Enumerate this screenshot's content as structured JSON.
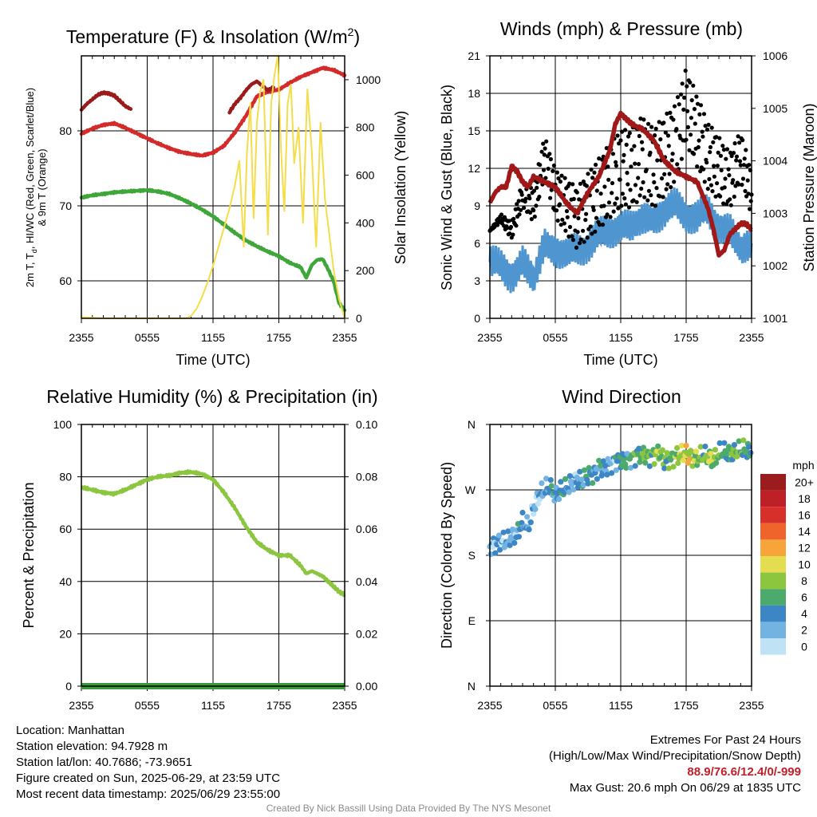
{
  "panels": {
    "temperature": {
      "title": "Temperature (F) & Insolation (W/m",
      "title_sup": "2",
      "title_end": ")",
      "ylabel_left_line1": "2m T, T",
      "ylabel_left_sub": "d",
      "ylabel_left_line1_end": ", HI/WC (Red, Green, Scarlet/Blue)",
      "ylabel_left_line2": "& 9m T (Orange)",
      "ylabel_right": "Solar Insolation (Yellow)",
      "xlabel": "Time (UTC)"
    },
    "winds": {
      "title": "Winds (mph) & Pressure (mb)",
      "ylabel_left": "Sonic Wind & Gust (Blue, Black)",
      "ylabel_right": "Station Pressure (Maroon)",
      "xlabel": "Time (UTC)"
    },
    "humidity": {
      "title": "Relative Humidity (%) & Precipitation (in)",
      "ylabel_left": "Percent & Precipitation"
    },
    "direction": {
      "title": "Wind Direction",
      "ylabel_left": "Direction (Colored By Speed)",
      "legend_title": "mph"
    }
  },
  "chart_data": [
    {
      "type": "line",
      "title": "Temperature (F) & Insolation (W/m2)",
      "xlabel": "Time (UTC)",
      "x_tick_labels": [
        "2355",
        "0555",
        "1155",
        "1755",
        "2355"
      ],
      "xlim": [
        0,
        24
      ],
      "ylim_left": [
        55,
        90
      ],
      "y_ticks_left": [
        60,
        70,
        80
      ],
      "ylim_right": [
        0,
        1100
      ],
      "y_ticks_right": [
        0,
        200,
        400,
        600,
        800,
        1000
      ],
      "series": [
        {
          "name": "2m T",
          "color": "#d42a2a",
          "axis": "left",
          "x": [
            0,
            1,
            2,
            3,
            4,
            5,
            6,
            7,
            8,
            9,
            10,
            11,
            12,
            13,
            14,
            15,
            16,
            17,
            18,
            19,
            20,
            21,
            22,
            23,
            24
          ],
          "y": [
            79.6,
            80.3,
            80.8,
            81.0,
            80.4,
            79.7,
            79.0,
            78.3,
            77.7,
            77.2,
            76.9,
            76.7,
            77.1,
            78.0,
            79.8,
            82.0,
            84.6,
            85.2,
            85.5,
            86.4,
            87.2,
            87.8,
            88.4,
            88.1,
            87.4
          ]
        },
        {
          "name": "HI/WC",
          "color": "#9a1b1b",
          "axis": "left",
          "x": [
            0,
            0.5,
            1,
            1.5,
            2,
            2.5,
            3,
            3.5,
            4,
            4.5
          ],
          "y": [
            82.8,
            83.6,
            84.2,
            84.8,
            85.1,
            85.0,
            84.7,
            84.0,
            83.3,
            82.9
          ]
        },
        {
          "name": "HI/WC",
          "color": "#9a1b1b",
          "axis": "left",
          "x": [
            13.5,
            14,
            14.5,
            15,
            15.5,
            16,
            16.5,
            17,
            17.5
          ],
          "y": [
            82.5,
            83.6,
            84.4,
            85.4,
            86.2,
            86.6,
            86.0,
            85.4,
            85.8
          ]
        },
        {
          "name": "Td",
          "color": "#3fa63a",
          "axis": "left",
          "x": [
            0,
            1,
            2,
            3,
            4,
            5,
            6,
            7,
            8,
            9,
            10,
            11,
            12,
            13,
            14,
            15,
            16,
            17,
            18,
            19,
            20,
            20.5,
            21,
            21.5,
            22,
            22.5,
            23,
            23.5,
            24
          ],
          "y": [
            71.1,
            71.4,
            71.6,
            71.8,
            71.9,
            72.0,
            72.1,
            71.9,
            71.6,
            71.0,
            70.3,
            69.5,
            68.6,
            67.5,
            66.4,
            65.4,
            64.6,
            63.9,
            63.3,
            62.4,
            61.8,
            60.4,
            62.1,
            62.8,
            62.9,
            61.5,
            59.9,
            57.0,
            56.1
          ]
        },
        {
          "name": "Solar Insolation",
          "color": "#f5dd4a",
          "axis": "right",
          "x": [
            0,
            2,
            4,
            6,
            8,
            9,
            9.5,
            10,
            10.5,
            11,
            11.5,
            12,
            12.5,
            13,
            13.5,
            14,
            14.4,
            14.8,
            15.1,
            15.4,
            15.7,
            16,
            16.3,
            16.6,
            17,
            17.3,
            17.6,
            17.9,
            18.2,
            18.5,
            18.8,
            19.1,
            19.4,
            19.8,
            20.2,
            20.6,
            21,
            21.4,
            21.8,
            22.2,
            22.6,
            23,
            23.5,
            24
          ],
          "y": [
            5,
            0,
            0,
            0,
            0,
            0,
            0,
            10,
            40,
            90,
            150,
            220,
            300,
            380,
            460,
            560,
            660,
            300,
            700,
            900,
            420,
            820,
            950,
            1000,
            350,
            900,
            1020,
            1100,
            700,
            450,
            900,
            980,
            650,
            800,
            400,
            960,
            700,
            300,
            820,
            500,
            350,
            200,
            80,
            0
          ]
        }
      ]
    },
    {
      "type": "line",
      "title": "Winds (mph) & Pressure (mb)",
      "xlabel": "Time (UTC)",
      "x_tick_labels": [
        "2355",
        "0555",
        "1155",
        "1755",
        "2355"
      ],
      "xlim": [
        0,
        24
      ],
      "ylim_left": [
        0,
        21
      ],
      "y_ticks_left": [
        0,
        3,
        6,
        9,
        12,
        15,
        18,
        21
      ],
      "ylim_right": [
        1001,
        1006
      ],
      "y_ticks_right": [
        1001,
        1002,
        1003,
        1004,
        1005,
        1006
      ],
      "series": [
        {
          "name": "Sonic Wind",
          "color": "#4f95d0",
          "axis": "left",
          "x": [
            0,
            1,
            2,
            3,
            4,
            5,
            6,
            7,
            8,
            9,
            10,
            11,
            12,
            13,
            14,
            15,
            16,
            17,
            18,
            19,
            20,
            21,
            22,
            23,
            24
          ],
          "y": [
            4.5,
            4.0,
            3.5,
            4.5,
            3.0,
            6.0,
            5.5,
            5.0,
            5.5,
            6.0,
            6.5,
            7.0,
            7.5,
            7.2,
            8.0,
            8.0,
            8.5,
            9.0,
            8.5,
            8.0,
            8.5,
            7.5,
            7.0,
            5.5,
            6.0
          ]
        },
        {
          "name": "Gust",
          "color": "#000000",
          "axis": "left",
          "style": "dots",
          "x": [
            0,
            1,
            2,
            3,
            4,
            5,
            6,
            7,
            8,
            9,
            10,
            11,
            12,
            13,
            14,
            15,
            16,
            17,
            18,
            19,
            20,
            21,
            22,
            23,
            24
          ],
          "y": [
            7,
            8,
            7,
            10,
            9,
            13,
            10,
            9,
            8,
            9,
            10,
            11,
            12,
            12,
            13,
            12,
            13,
            14,
            17,
            15,
            13,
            12,
            11,
            13,
            10
          ]
        },
        {
          "name": "Station Pressure",
          "color": "#a01818",
          "axis": "right",
          "x": [
            0,
            0.5,
            1,
            1.5,
            2,
            2.5,
            3,
            3.5,
            4,
            5,
            6,
            7,
            8,
            9,
            10,
            11,
            11.5,
            12,
            12.5,
            13,
            14,
            15,
            16,
            17,
            18,
            19,
            20,
            20.5,
            21,
            21.5,
            22,
            22.5,
            23,
            23.5,
            24
          ],
          "y": [
            1003.2,
            1003.4,
            1003.5,
            1003.5,
            1003.9,
            1003.8,
            1003.6,
            1003.5,
            1003.7,
            1003.6,
            1003.5,
            1003.2,
            1003.0,
            1003.4,
            1003.7,
            1004.2,
            1004.7,
            1004.9,
            1004.8,
            1004.7,
            1004.6,
            1004.4,
            1004.0,
            1003.8,
            1003.7,
            1003.6,
            1003.1,
            1002.7,
            1002.2,
            1002.3,
            1002.6,
            1002.7,
            1002.8,
            1002.8,
            1002.7
          ]
        }
      ]
    },
    {
      "type": "line",
      "title": "Relative Humidity (%) & Precipitation (in)",
      "ylabel": "Percent & Precipitation",
      "x_tick_labels": [
        "2355",
        "0555",
        "1155",
        "1755",
        "2355"
      ],
      "xlim": [
        0,
        24
      ],
      "ylim_left": [
        0,
        100
      ],
      "y_ticks_left": [
        0,
        20,
        40,
        60,
        80,
        100
      ],
      "ylim_right": [
        0,
        0.1
      ],
      "y_tick_labels_right": [
        "0.00",
        "0.02",
        "0.04",
        "0.06",
        "0.08",
        "0.10"
      ],
      "series": [
        {
          "name": "Relative Humidity",
          "color": "#8cc640",
          "axis": "left",
          "x": [
            0,
            1,
            2,
            3,
            4,
            5,
            6,
            7,
            8,
            9,
            10,
            11,
            12,
            13,
            14,
            15,
            16,
            17,
            18,
            19,
            20,
            20.5,
            21,
            21.5,
            22,
            22.5,
            23,
            23.5,
            24
          ],
          "y": [
            76,
            75,
            74,
            73.5,
            75,
            77,
            79,
            80,
            80.5,
            81.5,
            81.8,
            81,
            79,
            74,
            68,
            61,
            55,
            52,
            50,
            50,
            46,
            43,
            44,
            43,
            42,
            40,
            38,
            36,
            35
          ]
        },
        {
          "name": "Precipitation",
          "color": "#3a9a3a",
          "axis": "right",
          "x": [
            0,
            24
          ],
          "y": [
            0,
            0
          ]
        }
      ]
    },
    {
      "type": "scatter",
      "title": "Wind Direction",
      "ylabel": "Direction (Colored By Speed)",
      "x_tick_labels": [
        "2355",
        "0555",
        "1155",
        "1755",
        "2355"
      ],
      "xlim": [
        0,
        24
      ],
      "y_tick_labels": [
        "N",
        "E",
        "S",
        "W",
        "N"
      ],
      "ylim": [
        0,
        360
      ],
      "legend_title": "mph",
      "legend_labels": [
        "20+",
        "18",
        "16",
        "14",
        "12",
        "10",
        "8",
        "6",
        "4",
        "2",
        "0"
      ],
      "legend_colors": [
        "#9b1c1c",
        "#bd2026",
        "#d7302b",
        "#ee642a",
        "#f7a43b",
        "#e4dd52",
        "#8cc63f",
        "#4caa6b",
        "#3d86c6",
        "#72b3e2",
        "#bfe3f5"
      ],
      "series": [
        {
          "name": "Wind Direction",
          "x": [
            0,
            0.5,
            1,
            1.5,
            2,
            2.5,
            3,
            3.5,
            4,
            4.5,
            5,
            5.5,
            6,
            6.5,
            7,
            7.5,
            8,
            8.5,
            9,
            9.5,
            10,
            10.5,
            11,
            11.5,
            12,
            12.5,
            13,
            13.5,
            14,
            14.5,
            15,
            15.5,
            16,
            16.5,
            17,
            17.5,
            18,
            18.5,
            19,
            19.5,
            20,
            20.5,
            21,
            21.5,
            22,
            22.5,
            23,
            23.5,
            24
          ],
          "y": [
            192,
            195,
            200,
            198,
            205,
            210,
            225,
            218,
            245,
            262,
            270,
            275,
            262,
            268,
            272,
            280,
            285,
            282,
            290,
            292,
            300,
            298,
            305,
            310,
            310,
            312,
            314,
            318,
            320,
            315,
            318,
            322,
            310,
            312,
            316,
            318,
            320,
            314,
            312,
            318,
            316,
            310,
            320,
            322,
            318,
            322,
            324,
            326,
            320
          ],
          "speed": [
            3,
            4,
            3,
            4,
            3,
            5,
            4,
            3,
            2,
            3,
            4,
            5,
            4,
            6,
            4,
            3,
            4,
            5,
            6,
            4,
            5,
            4,
            3,
            5,
            6,
            5,
            7,
            6,
            8,
            7,
            9,
            8,
            7,
            8,
            9,
            10,
            11,
            9,
            8,
            7,
            9,
            8,
            7,
            6,
            7,
            8,
            7,
            6,
            7
          ]
        }
      ]
    }
  ],
  "info": {
    "location": "Location: Manhattan",
    "elevation": "Station elevation: 94.7928 m",
    "latlon": "Station lat/lon: 40.7686; -73.9651",
    "created": "Figure created on Sun, 2025-06-29, at 23:59 UTC",
    "recent": "Most recent data timestamp: 2025/06/29 23:55:00"
  },
  "extremes": {
    "title": "Extremes For Past 24 Hours",
    "subtitle": "(High/Low/Max Wind/Precipitation/Snow Depth)",
    "values": "88.9/76.6/12.4/0/-999",
    "max_gust": "Max Gust: 20.6 mph On 06/29 at 1835 UTC"
  },
  "credit": "Created By Nick Bassill Using Data Provided By The NYS Mesonet"
}
